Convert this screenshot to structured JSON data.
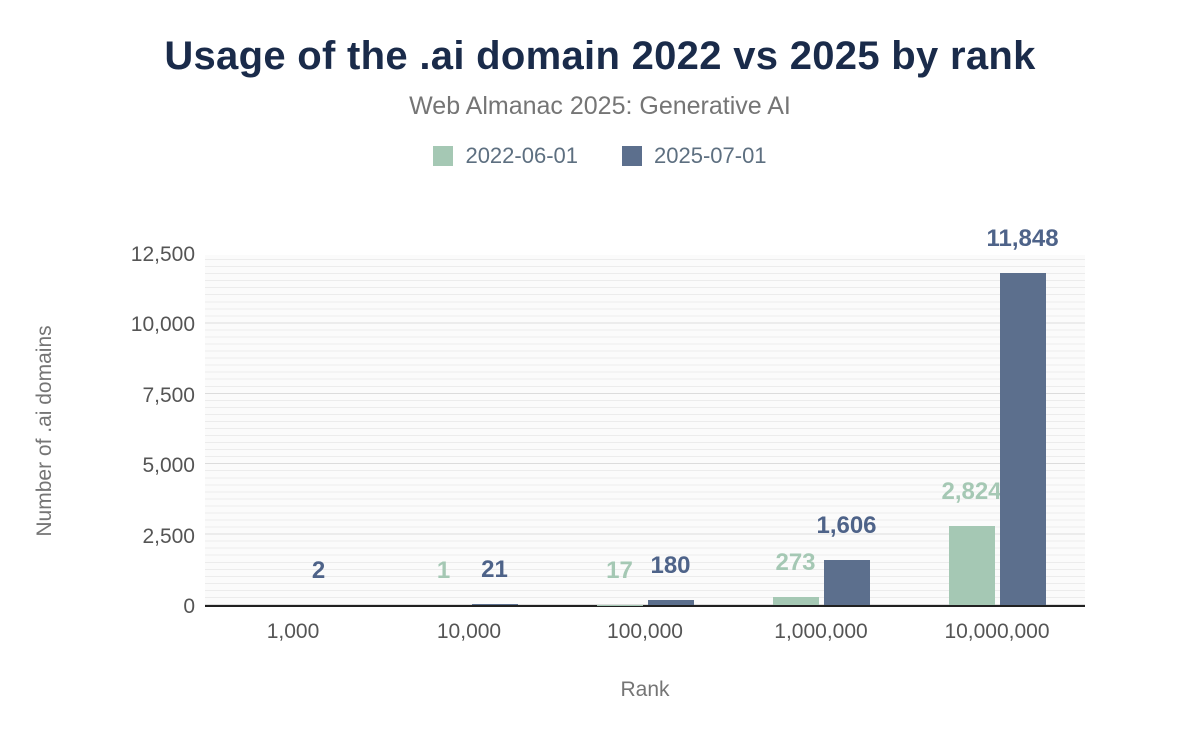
{
  "title": "Usage of the .ai domain 2022 vs 2025 by rank",
  "subtitle": "Web Almanac 2025: Generative AI",
  "colors": {
    "title": "#1a2b4a",
    "subtitle": "#757575",
    "axis_text": "#555555",
    "series_2022": "#a5c8b4",
    "series_2025": "#5c6f8d"
  },
  "chart_data": {
    "type": "bar",
    "title": "Usage of the .ai domain 2022 vs 2025 by rank",
    "subtitle": "Web Almanac 2025: Generative AI",
    "xlabel": "Rank",
    "ylabel": "Number of .ai domains",
    "ylim": [
      0,
      12500
    ],
    "yticks": [
      0,
      2500,
      5000,
      7500,
      10000,
      12500
    ],
    "ytick_labels": [
      "0",
      "2,500",
      "5,000",
      "7,500",
      "10,000",
      "12,500"
    ],
    "categories": [
      "1,000",
      "10,000",
      "100,000",
      "1,000,000",
      "10,000,000"
    ],
    "grid": true,
    "legend_position": "top",
    "series": [
      {
        "name": "2022-06-01",
        "color": "#a5c8b4",
        "label_color": "#a5c8b4",
        "values": [
          null,
          1,
          17,
          273,
          2824
        ],
        "labels": [
          "",
          "1",
          "17",
          "273",
          "2,824"
        ]
      },
      {
        "name": "2025-07-01",
        "color": "#5c6f8d",
        "label_color": "#4e6389",
        "values": [
          2,
          21,
          180,
          1606,
          11848
        ],
        "labels": [
          "2",
          "21",
          "180",
          "1,606",
          "11,848"
        ]
      }
    ]
  }
}
